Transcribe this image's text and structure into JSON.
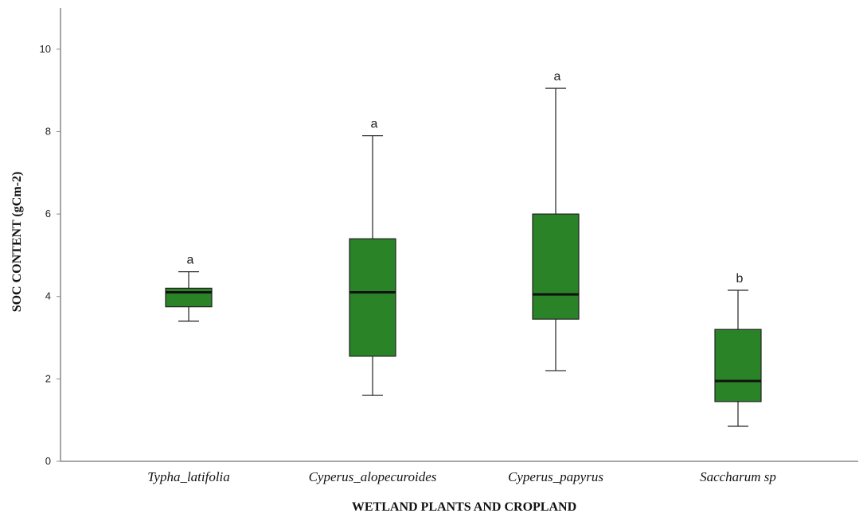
{
  "chart_data": {
    "type": "boxplot",
    "title": "",
    "xlabel": "WETLAND PLANTS AND CROPLAND",
    "ylabel": "SOC CONTENT (gCm-2)",
    "ylim": [
      0,
      11
    ],
    "yticks": [
      0,
      2,
      4,
      6,
      8,
      10
    ],
    "grid": false,
    "box_color": "#2a8427",
    "categories": [
      "Typha_latifolia",
      "Cyperus_alopecuroides",
      "Cyperus_papyrus",
      "Saccharum sp"
    ],
    "boxes": [
      {
        "category": "Typha_latifolia",
        "whisker_low": 3.4,
        "q1": 3.75,
        "median": 4.1,
        "q3": 4.2,
        "whisker_high": 4.6,
        "label": "a"
      },
      {
        "category": "Cyperus_alopecuroides",
        "whisker_low": 1.6,
        "q1": 2.55,
        "median": 4.1,
        "q3": 5.4,
        "whisker_high": 7.9,
        "label": "a"
      },
      {
        "category": "Cyperus_papyrus",
        "whisker_low": 2.2,
        "q1": 3.45,
        "median": 4.05,
        "q3": 6.0,
        "whisker_high": 9.05,
        "label": "a"
      },
      {
        "category": "Saccharum sp",
        "whisker_low": 0.85,
        "q1": 1.45,
        "median": 1.95,
        "q3": 3.2,
        "whisker_high": 4.15,
        "label": "b"
      }
    ]
  }
}
